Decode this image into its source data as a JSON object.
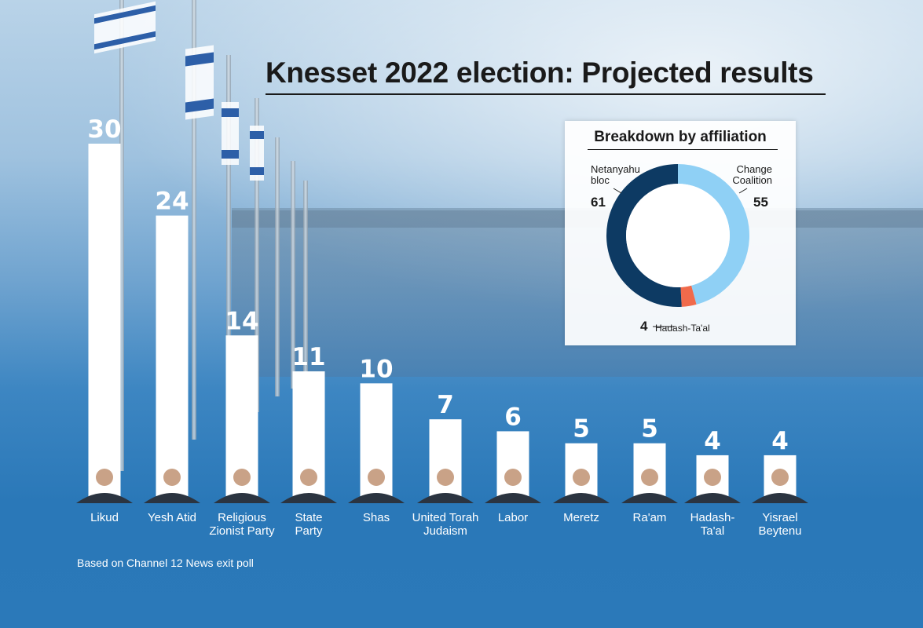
{
  "title": "Knesset 2022 election: Projected results",
  "footnote": "Based on Channel 12 News exit poll",
  "colors": {
    "bar": "#ffffff",
    "netanyahu_bloc": "#0d3a63",
    "change_coalition": "#8fd0f5",
    "hadash_taal": "#f06a4b",
    "background_top": "#b9d3e8",
    "background_bottom": "#2b79b9"
  },
  "chart_data": [
    {
      "type": "bar",
      "title": "Knesset 2022 election: Projected results",
      "categories": [
        "Likud",
        "Yesh Atid",
        "Religious Zionist Party",
        "State Party",
        "Shas",
        "United Torah Judaism",
        "Labor",
        "Meretz",
        "Ra'am",
        "Hadash-Ta'al",
        "Yisrael Beytenu"
      ],
      "category_lines": [
        [
          "Likud"
        ],
        [
          "Yesh Atid"
        ],
        [
          "Religious",
          "Zionist Party"
        ],
        [
          "State",
          "Party"
        ],
        [
          "Shas"
        ],
        [
          "United Torah",
          "Judaism"
        ],
        [
          "Labor"
        ],
        [
          "Meretz"
        ],
        [
          "Ra'am"
        ],
        [
          "Hadash-",
          "Ta'al"
        ],
        [
          "Yisrael",
          "Beytenu"
        ]
      ],
      "values": [
        30,
        24,
        14,
        11,
        10,
        7,
        6,
        5,
        5,
        4,
        4
      ],
      "ylim": [
        0,
        30
      ],
      "grid": false
    },
    {
      "type": "pie",
      "title": "Breakdown by affiliation",
      "labels": [
        "Netanyahu bloc",
        "Change Coalition",
        "Hadash-Ta'al"
      ],
      "label_lines": [
        [
          "Netanyahu",
          "bloc"
        ],
        [
          "Change",
          "Coalition"
        ],
        [
          "Hadash-Ta'al"
        ]
      ],
      "values": [
        61,
        55,
        4
      ],
      "donut": true
    }
  ]
}
